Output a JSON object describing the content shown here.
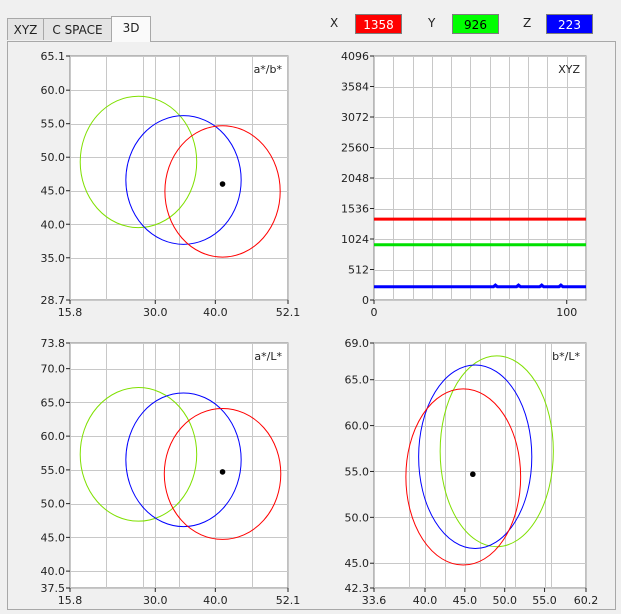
{
  "tabs": [
    {
      "label": "XYZ",
      "active": false
    },
    {
      "label": "C SPACE",
      "active": false
    },
    {
      "label": "3D",
      "active": true
    }
  ],
  "readouts": [
    {
      "label": "X",
      "value": "1358",
      "color": "#ff0000",
      "text_color": "#ffffff"
    },
    {
      "label": "Y",
      "value": "926",
      "color": "#00ff00",
      "text_color": "#000000"
    },
    {
      "label": "Z",
      "value": "223",
      "color": "#0000ff",
      "text_color": "#ffffff"
    }
  ],
  "chart_data": [
    {
      "type": "scatter",
      "title": "a*/b*",
      "xlim": [
        15.8,
        52.1
      ],
      "ylim": [
        28.7,
        65.1
      ],
      "x_ticks": [
        "15.8",
        "30.0",
        "40.0",
        "52.1"
      ],
      "x_tick_values": [
        15.8,
        30.0,
        40.0,
        52.1
      ],
      "y_ticks": [
        "65.1",
        "60.0",
        "55.0",
        "50.0",
        "45.0",
        "40.0",
        "35.0",
        "28.7"
      ],
      "y_tick_values": [
        65.1,
        60.0,
        55.0,
        50.0,
        45.0,
        40.0,
        35.0,
        28.7
      ],
      "circles": [
        {
          "color": "#7fe000",
          "cx": 27.2,
          "cy": 49.3,
          "rx": 9.7,
          "ry": 9.8
        },
        {
          "color": "#0000ff",
          "cx": 34.7,
          "cy": 46.6,
          "rx": 9.6,
          "ry": 9.6
        },
        {
          "color": "#ff0000",
          "cx": 41.2,
          "cy": 44.9,
          "rx": 9.6,
          "ry": 9.8
        }
      ],
      "point": {
        "x": 41.2,
        "y": 46.0
      }
    },
    {
      "type": "line",
      "title": "XYZ",
      "xlim": [
        0,
        110
      ],
      "ylim": [
        0,
        4096
      ],
      "x_ticks": [
        "0",
        "100"
      ],
      "x_tick_values": [
        0,
        100
      ],
      "y_ticks": [
        "4096",
        "3584",
        "3072",
        "2560",
        "2048",
        "1536",
        "1024",
        "512",
        "0"
      ],
      "y_tick_values": [
        4096,
        3584,
        3072,
        2560,
        2048,
        1536,
        1024,
        512,
        0
      ],
      "series": [
        {
          "color": "#ff0000",
          "x": [
            0,
            110
          ],
          "y": [
            1358,
            1358
          ]
        },
        {
          "color": "#00e000",
          "x": [
            0,
            110
          ],
          "y": [
            926,
            926
          ]
        },
        {
          "color": "#0000ff",
          "x": [
            0,
            62,
            63,
            64,
            74,
            75,
            76,
            86,
            87,
            88,
            96,
            97,
            98,
            110
          ],
          "y": [
            223,
            223,
            250,
            223,
            223,
            250,
            223,
            223,
            250,
            223,
            223,
            250,
            223,
            223
          ]
        }
      ]
    },
    {
      "type": "scatter",
      "title": "a*/L*",
      "xlim": [
        15.8,
        52.1
      ],
      "ylim": [
        37.5,
        73.8
      ],
      "x_ticks": [
        "15.8",
        "30.0",
        "40.0",
        "52.1"
      ],
      "x_tick_values": [
        15.8,
        30.0,
        40.0,
        52.1
      ],
      "y_ticks": [
        "73.8",
        "70.0",
        "65.0",
        "60.0",
        "55.0",
        "50.0",
        "45.0",
        "40.0",
        "37.5"
      ],
      "y_tick_values": [
        73.8,
        70.0,
        65.0,
        60.0,
        55.0,
        50.0,
        45.0,
        40.0,
        37.5
      ],
      "circles": [
        {
          "color": "#7fe000",
          "cx": 27.2,
          "cy": 57.3,
          "rx": 9.7,
          "ry": 9.9
        },
        {
          "color": "#0000ff",
          "cx": 34.7,
          "cy": 56.5,
          "rx": 9.6,
          "ry": 9.9
        },
        {
          "color": "#ff0000",
          "cx": 41.2,
          "cy": 54.4,
          "rx": 9.7,
          "ry": 9.7
        }
      ],
      "point": {
        "x": 41.2,
        "y": 54.7
      }
    },
    {
      "type": "scatter",
      "title": "b*/L*",
      "xlim": [
        33.6,
        60.2
      ],
      "ylim": [
        42.3,
        69.0
      ],
      "x_ticks": [
        "33.6",
        "40.0",
        "45.0",
        "50.0",
        "55.0",
        "60.2"
      ],
      "x_tick_values": [
        33.6,
        40.0,
        45.0,
        50.0,
        55.0,
        60.2
      ],
      "y_ticks": [
        "69.0",
        "65.0",
        "60.0",
        "55.0",
        "50.0",
        "45.0",
        "42.3"
      ],
      "y_tick_values": [
        69.0,
        65.0,
        60.0,
        55.0,
        50.0,
        45.0,
        42.3
      ],
      "circles": [
        {
          "color": "#7fe000",
          "cx": 49.0,
          "cy": 57.2,
          "rx": 7.1,
          "ry": 10.4
        },
        {
          "color": "#0000ff",
          "cx": 46.3,
          "cy": 56.6,
          "rx": 7.1,
          "ry": 10.0
        },
        {
          "color": "#ff0000",
          "cx": 44.8,
          "cy": 54.4,
          "rx": 7.2,
          "ry": 9.6
        }
      ],
      "point": {
        "x": 46.0,
        "y": 54.7
      }
    }
  ]
}
